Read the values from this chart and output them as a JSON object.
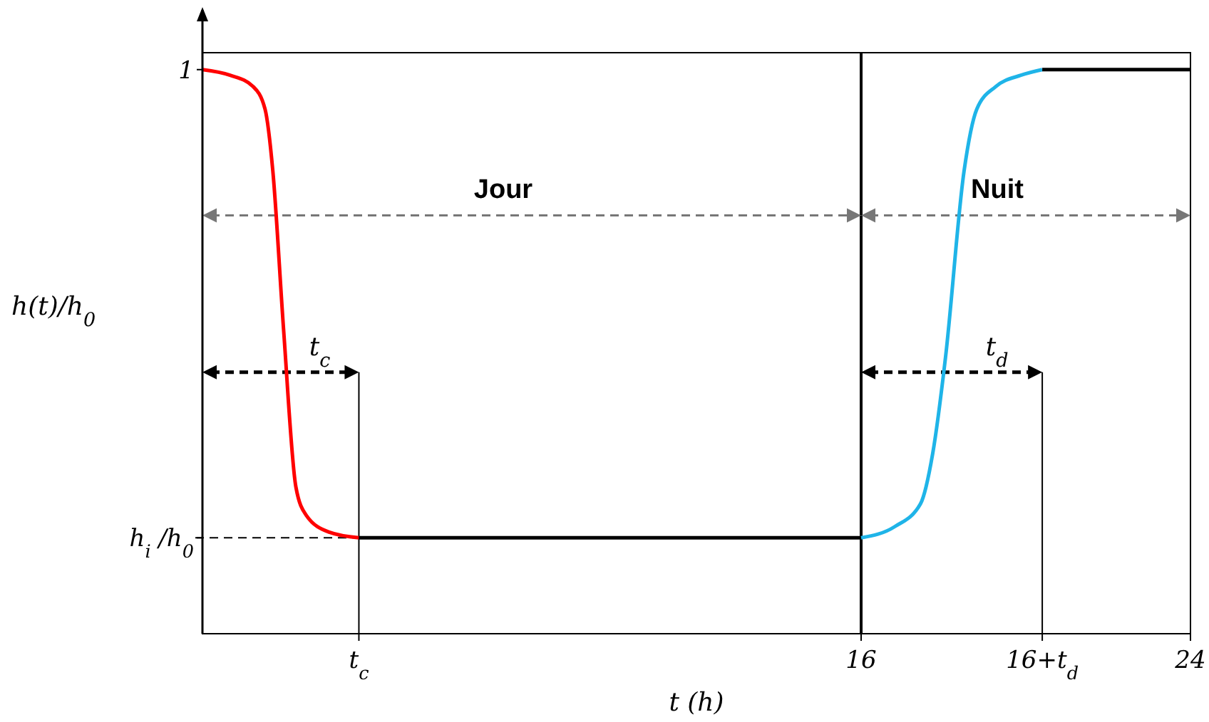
{
  "chart_data": {
    "type": "line",
    "xlabel": "t (h)",
    "ylabel": "h(t)/h$_{0}$",
    "xlim": [
      0,
      24
    ],
    "ylim": [
      0,
      1.03
    ],
    "xticks": [
      {
        "value": 3.8,
        "label": "t$_{c}$"
      },
      16,
      {
        "value": 20.4,
        "label": "16+t$_{d}$"
      },
      24
    ],
    "yticks": [
      1,
      {
        "value": 0.17,
        "label": "h$_{i}$/h$_{0}$"
      }
    ],
    "series": [
      {
        "color": "#ff0000",
        "x": [
          0,
          0.67,
          1.23,
          1.52,
          1.71,
          1.97,
          2.27,
          2.52,
          3.08,
          3.8
        ],
        "values": [
          1,
          0.99,
          0.97,
          0.93,
          0.82,
          0.54,
          0.26,
          0.21,
          0.18,
          0.17
        ]
      },
      {
        "color": "#000000",
        "x": [
          3.8,
          16
        ],
        "values": [
          0.17,
          0.17
        ]
      },
      {
        "color": "#1fb4e8",
        "x": [
          16,
          16.82,
          17.44,
          17.74,
          18.05,
          18.5,
          18.81,
          19.27,
          19.88,
          20.4
        ],
        "values": [
          0.17,
          0.19,
          0.23,
          0.32,
          0.49,
          0.82,
          0.93,
          0.97,
          0.99,
          1
        ]
      },
      {
        "color": "#000000",
        "x": [
          20.4,
          24
        ],
        "values": [
          1,
          1
        ]
      }
    ],
    "ref_lines": [
      {
        "axis": "x",
        "value": 16,
        "color": "#000000",
        "line_style": "solid"
      },
      {
        "axis": "y",
        "value": 0.17,
        "color": "#000000",
        "line_style": "dashed"
      }
    ],
    "annotations": [
      "Jour",
      "Nuit",
      "t$_{c}$",
      "t$_{d}$"
    ]
  }
}
